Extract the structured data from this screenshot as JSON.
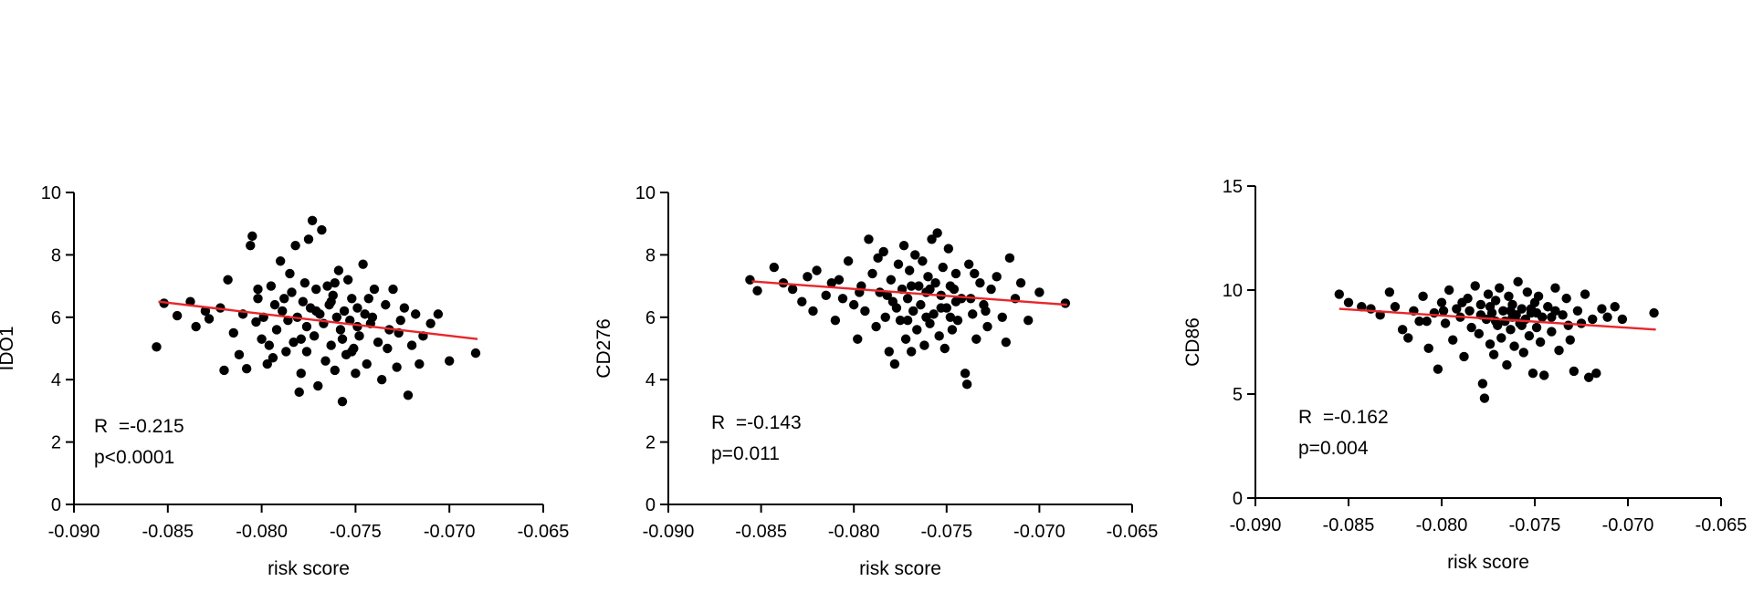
{
  "chart_data": [
    {
      "type": "scatter",
      "xlabel": "risk score",
      "ylabel": "IDO1",
      "xlim": [
        -0.09,
        -0.065
      ],
      "ylim": [
        0,
        10
      ],
      "xticks": [
        -0.09,
        -0.085,
        -0.08,
        -0.075,
        -0.07,
        -0.065
      ],
      "xtick_labels": [
        "-0.090",
        "-0.085",
        "-0.080",
        "-0.075",
        "-0.070",
        "-0.065"
      ],
      "yticks": [
        0,
        2,
        4,
        6,
        8,
        10
      ],
      "ytick_labels": [
        "0",
        "2",
        "4",
        "6",
        "8",
        "10"
      ],
      "r_text": "R  =-0.215",
      "p_text": "p<0.0001",
      "fit_line": {
        "x": [
          -0.0855,
          -0.0685
        ],
        "y": [
          6.5,
          5.3
        ]
      },
      "colors": {
        "points": "#000000",
        "fit_line": "#e8262a"
      },
      "points": [
        [
          -0.0856,
          5.05
        ],
        [
          -0.0852,
          6.45
        ],
        [
          -0.0845,
          6.05
        ],
        [
          -0.0838,
          6.5
        ],
        [
          -0.0835,
          5.7
        ],
        [
          -0.083,
          6.2
        ],
        [
          -0.0828,
          5.95
        ],
        [
          -0.0822,
          6.3
        ],
        [
          -0.082,
          4.3
        ],
        [
          -0.0818,
          7.2
        ],
        [
          -0.0815,
          5.5
        ],
        [
          -0.0812,
          4.8
        ],
        [
          -0.081,
          6.1
        ],
        [
          -0.0808,
          4.35
        ],
        [
          -0.0805,
          8.6
        ],
        [
          -0.0806,
          8.3
        ],
        [
          -0.0803,
          5.85
        ],
        [
          -0.0802,
          6.6
        ],
        [
          -0.08,
          5.3
        ],
        [
          -0.0799,
          6.0
        ],
        [
          -0.0797,
          4.5
        ],
        [
          -0.0795,
          7.0
        ],
        [
          -0.0793,
          6.4
        ],
        [
          -0.0792,
          5.6
        ],
        [
          -0.079,
          7.8
        ],
        [
          -0.0789,
          6.2
        ],
        [
          -0.0787,
          4.9
        ],
        [
          -0.0786,
          5.9
        ],
        [
          -0.0785,
          7.4
        ],
        [
          -0.0784,
          6.8
        ],
        [
          -0.0783,
          5.2
        ],
        [
          -0.0782,
          8.3
        ],
        [
          -0.0781,
          6.0
        ],
        [
          -0.078,
          3.6
        ],
        [
          -0.0779,
          4.2
        ],
        [
          -0.0778,
          6.5
        ],
        [
          -0.0777,
          7.1
        ],
        [
          -0.0776,
          5.7
        ],
        [
          -0.0775,
          8.5
        ],
        [
          -0.0774,
          6.3
        ],
        [
          -0.0773,
          9.1
        ],
        [
          -0.0772,
          5.4
        ],
        [
          -0.0771,
          6.9
        ],
        [
          -0.077,
          3.8
        ],
        [
          -0.0769,
          6.1
        ],
        [
          -0.0768,
          8.8
        ],
        [
          -0.0767,
          5.8
        ],
        [
          -0.0766,
          4.6
        ],
        [
          -0.0765,
          7.0
        ],
        [
          -0.0764,
          6.4
        ],
        [
          -0.0763,
          5.1
        ],
        [
          -0.0762,
          6.7
        ],
        [
          -0.0761,
          4.3
        ],
        [
          -0.076,
          6.0
        ],
        [
          -0.0759,
          7.5
        ],
        [
          -0.0758,
          5.6
        ],
        [
          -0.0757,
          3.3
        ],
        [
          -0.0756,
          6.2
        ],
        [
          -0.0755,
          4.8
        ],
        [
          -0.0754,
          7.2
        ],
        [
          -0.0753,
          5.9
        ],
        [
          -0.0752,
          6.6
        ],
        [
          -0.0751,
          5.0
        ],
        [
          -0.075,
          4.2
        ],
        [
          -0.0749,
          6.3
        ],
        [
          -0.0748,
          5.4
        ],
        [
          -0.0746,
          7.7
        ],
        [
          -0.0745,
          6.1
        ],
        [
          -0.0744,
          4.5
        ],
        [
          -0.0742,
          5.8
        ],
        [
          -0.074,
          6.9
        ],
        [
          -0.0738,
          5.2
        ],
        [
          -0.0736,
          4.0
        ],
        [
          -0.0734,
          6.4
        ],
        [
          -0.0732,
          5.6
        ],
        [
          -0.073,
          6.9
        ],
        [
          -0.0728,
          4.4
        ],
        [
          -0.0726,
          5.9
        ],
        [
          -0.0724,
          6.3
        ],
        [
          -0.0722,
          3.5
        ],
        [
          -0.072,
          5.1
        ],
        [
          -0.0718,
          6.1
        ],
        [
          -0.0716,
          4.5
        ],
        [
          -0.0714,
          5.4
        ],
        [
          -0.071,
          5.8
        ],
        [
          -0.0706,
          6.1
        ],
        [
          -0.07,
          4.6
        ],
        [
          -0.0686,
          4.85
        ],
        [
          -0.0802,
          6.9
        ],
        [
          -0.0796,
          5.1
        ],
        [
          -0.0788,
          6.6
        ],
        [
          -0.0779,
          5.3
        ],
        [
          -0.0771,
          6.2
        ],
        [
          -0.0763,
          6.5
        ],
        [
          -0.0757,
          5.3
        ],
        [
          -0.0749,
          5.7
        ],
        [
          -0.0741,
          6.0
        ],
        [
          -0.0733,
          5.0
        ],
        [
          -0.0727,
          5.5
        ],
        [
          -0.0794,
          4.7
        ],
        [
          -0.0776,
          4.9
        ],
        [
          -0.0761,
          7.1
        ],
        [
          -0.0752,
          4.9
        ],
        [
          -0.0743,
          6.6
        ]
      ]
    },
    {
      "type": "scatter",
      "xlabel": "risk score",
      "ylabel": "CD276",
      "xlim": [
        -0.09,
        -0.065
      ],
      "ylim": [
        0,
        10
      ],
      "xticks": [
        -0.09,
        -0.085,
        -0.08,
        -0.075,
        -0.07,
        -0.065
      ],
      "xtick_labels": [
        "-0.090",
        "-0.085",
        "-0.080",
        "-0.075",
        "-0.070",
        "-0.065"
      ],
      "yticks": [
        0,
        2,
        4,
        6,
        8,
        10
      ],
      "ytick_labels": [
        "0",
        "2",
        "4",
        "6",
        "8",
        "10"
      ],
      "r_text": "R  =-0.143",
      "p_text": "p=0.011",
      "fit_line": {
        "x": [
          -0.0855,
          -0.0685
        ],
        "y": [
          7.15,
          6.4
        ]
      },
      "colors": {
        "points": "#000000",
        "fit_line": "#e8262a"
      },
      "points": [
        [
          -0.0856,
          7.2
        ],
        [
          -0.0852,
          6.85
        ],
        [
          -0.0843,
          7.6
        ],
        [
          -0.0838,
          7.1
        ],
        [
          -0.0833,
          6.9
        ],
        [
          -0.0828,
          6.5
        ],
        [
          -0.0825,
          7.3
        ],
        [
          -0.0822,
          6.2
        ],
        [
          -0.082,
          7.5
        ],
        [
          -0.0815,
          6.7
        ],
        [
          -0.0812,
          7.1
        ],
        [
          -0.081,
          5.9
        ],
        [
          -0.0806,
          6.6
        ],
        [
          -0.0803,
          7.8
        ],
        [
          -0.08,
          6.4
        ],
        [
          -0.0798,
          5.3
        ],
        [
          -0.0796,
          7.0
        ],
        [
          -0.0794,
          6.2
        ],
        [
          -0.0792,
          8.5
        ],
        [
          -0.079,
          7.4
        ],
        [
          -0.0788,
          5.7
        ],
        [
          -0.0786,
          6.8
        ],
        [
          -0.0784,
          8.1
        ],
        [
          -0.0783,
          6.0
        ],
        [
          -0.0781,
          4.9
        ],
        [
          -0.078,
          7.2
        ],
        [
          -0.0779,
          6.5
        ],
        [
          -0.0778,
          4.5
        ],
        [
          -0.0776,
          7.7
        ],
        [
          -0.0775,
          5.9
        ],
        [
          -0.0774,
          6.9
        ],
        [
          -0.0773,
          8.3
        ],
        [
          -0.0772,
          5.3
        ],
        [
          -0.0771,
          6.6
        ],
        [
          -0.077,
          7.5
        ],
        [
          -0.0769,
          4.9
        ],
        [
          -0.0768,
          6.2
        ],
        [
          -0.0767,
          8.0
        ],
        [
          -0.0766,
          5.6
        ],
        [
          -0.0765,
          7.0
        ],
        [
          -0.0764,
          6.4
        ],
        [
          -0.0763,
          7.8
        ],
        [
          -0.0762,
          5.1
        ],
        [
          -0.0761,
          6.8
        ],
        [
          -0.076,
          7.3
        ],
        [
          -0.0759,
          5.8
        ],
        [
          -0.0758,
          8.5
        ],
        [
          -0.0757,
          6.1
        ],
        [
          -0.0756,
          7.1
        ],
        [
          -0.0755,
          8.7
        ],
        [
          -0.0754,
          5.4
        ],
        [
          -0.0753,
          6.7
        ],
        [
          -0.0752,
          7.6
        ],
        [
          -0.0751,
          5.0
        ],
        [
          -0.075,
          6.3
        ],
        [
          -0.0749,
          8.2
        ],
        [
          -0.0748,
          7.0
        ],
        [
          -0.0747,
          5.6
        ],
        [
          -0.0746,
          6.9
        ],
        [
          -0.0745,
          7.4
        ],
        [
          -0.0744,
          5.9
        ],
        [
          -0.0742,
          6.6
        ],
        [
          -0.074,
          4.2
        ],
        [
          -0.0739,
          3.85
        ],
        [
          -0.0738,
          7.7
        ],
        [
          -0.0736,
          6.1
        ],
        [
          -0.0734,
          5.3
        ],
        [
          -0.0732,
          7.1
        ],
        [
          -0.073,
          6.4
        ],
        [
          -0.0728,
          5.7
        ],
        [
          -0.0726,
          6.9
        ],
        [
          -0.0723,
          7.3
        ],
        [
          -0.072,
          6.0
        ],
        [
          -0.0718,
          5.2
        ],
        [
          -0.0716,
          7.9
        ],
        [
          -0.0713,
          6.6
        ],
        [
          -0.071,
          7.1
        ],
        [
          -0.0706,
          5.9
        ],
        [
          -0.07,
          6.8
        ],
        [
          -0.0686,
          6.45
        ],
        [
          -0.0808,
          7.2
        ],
        [
          -0.0797,
          6.8
        ],
        [
          -0.0787,
          7.9
        ],
        [
          -0.0777,
          6.3
        ],
        [
          -0.0769,
          7.0
        ],
        [
          -0.0761,
          6.0
        ],
        [
          -0.0753,
          6.3
        ],
        [
          -0.0745,
          6.5
        ],
        [
          -0.0737,
          6.6
        ],
        [
          -0.0729,
          6.2
        ],
        [
          -0.0782,
          6.7
        ],
        [
          -0.0771,
          5.9
        ],
        [
          -0.0759,
          6.9
        ],
        [
          -0.0748,
          6.0
        ],
        [
          -0.0735,
          7.4
        ]
      ]
    },
    {
      "type": "scatter",
      "xlabel": "risk score",
      "ylabel": "CD86",
      "xlim": [
        -0.09,
        -0.065
      ],
      "ylim": [
        0,
        15
      ],
      "xticks": [
        -0.09,
        -0.085,
        -0.08,
        -0.075,
        -0.07,
        -0.065
      ],
      "xtick_labels": [
        "-0.090",
        "-0.085",
        "-0.080",
        "-0.075",
        "-0.070",
        "-0.065"
      ],
      "yticks": [
        0,
        5,
        10,
        15
      ],
      "ytick_labels": [
        "0",
        "5",
        "10",
        "15"
      ],
      "r_text": "R  =-0.162",
      "p_text": "p=0.004",
      "fit_line": {
        "x": [
          -0.0855,
          -0.0685
        ],
        "y": [
          9.1,
          8.1
        ]
      },
      "colors": {
        "points": "#000000",
        "fit_line": "#e8262a"
      },
      "points": [
        [
          -0.0855,
          9.8
        ],
        [
          -0.085,
          9.4
        ],
        [
          -0.0843,
          9.2
        ],
        [
          -0.0838,
          9.1
        ],
        [
          -0.0833,
          8.8
        ],
        [
          -0.0828,
          9.9
        ],
        [
          -0.0825,
          9.2
        ],
        [
          -0.0821,
          8.1
        ],
        [
          -0.0818,
          7.7
        ],
        [
          -0.0815,
          9.0
        ],
        [
          -0.0812,
          8.5
        ],
        [
          -0.081,
          9.7
        ],
        [
          -0.0807,
          7.2
        ],
        [
          -0.0804,
          8.9
        ],
        [
          -0.0802,
          6.2
        ],
        [
          -0.08,
          9.4
        ],
        [
          -0.0798,
          8.4
        ],
        [
          -0.0796,
          10.0
        ],
        [
          -0.0794,
          7.6
        ],
        [
          -0.0792,
          9.1
        ],
        [
          -0.079,
          8.7
        ],
        [
          -0.0788,
          6.8
        ],
        [
          -0.0786,
          9.6
        ],
        [
          -0.0784,
          8.2
        ],
        [
          -0.0782,
          10.2
        ],
        [
          -0.078,
          7.9
        ],
        [
          -0.0779,
          9.3
        ],
        [
          -0.0778,
          5.5
        ],
        [
          -0.0777,
          4.8
        ],
        [
          -0.0776,
          8.6
        ],
        [
          -0.0775,
          9.8
        ],
        [
          -0.0774,
          7.4
        ],
        [
          -0.0773,
          8.9
        ],
        [
          -0.0772,
          6.9
        ],
        [
          -0.0771,
          9.5
        ],
        [
          -0.077,
          8.3
        ],
        [
          -0.0769,
          10.1
        ],
        [
          -0.0768,
          7.7
        ],
        [
          -0.0767,
          9.0
        ],
        [
          -0.0766,
          8.5
        ],
        [
          -0.0765,
          6.4
        ],
        [
          -0.0764,
          9.7
        ],
        [
          -0.0763,
          8.1
        ],
        [
          -0.0762,
          9.3
        ],
        [
          -0.0761,
          7.3
        ],
        [
          -0.076,
          8.8
        ],
        [
          -0.0759,
          10.4
        ],
        [
          -0.0758,
          8.4
        ],
        [
          -0.0757,
          9.1
        ],
        [
          -0.0756,
          7.0
        ],
        [
          -0.0755,
          8.6
        ],
        [
          -0.0754,
          9.9
        ],
        [
          -0.0753,
          7.8
        ],
        [
          -0.0752,
          8.9
        ],
        [
          -0.0751,
          6.0
        ],
        [
          -0.075,
          9.4
        ],
        [
          -0.0749,
          8.2
        ],
        [
          -0.0748,
          9.7
        ],
        [
          -0.0747,
          7.5
        ],
        [
          -0.0746,
          8.7
        ],
        [
          -0.0745,
          5.9
        ],
        [
          -0.0743,
          9.2
        ],
        [
          -0.0741,
          8.0
        ],
        [
          -0.0739,
          10.1
        ],
        [
          -0.0737,
          7.1
        ],
        [
          -0.0735,
          8.8
        ],
        [
          -0.0733,
          9.6
        ],
        [
          -0.0731,
          7.6
        ],
        [
          -0.0729,
          6.1
        ],
        [
          -0.0727,
          9.0
        ],
        [
          -0.0725,
          8.4
        ],
        [
          -0.0723,
          9.8
        ],
        [
          -0.0721,
          5.8
        ],
        [
          -0.0719,
          8.6
        ],
        [
          -0.0717,
          6.0
        ],
        [
          -0.0714,
          9.1
        ],
        [
          -0.0711,
          8.7
        ],
        [
          -0.0707,
          9.2
        ],
        [
          -0.0703,
          8.6
        ],
        [
          -0.0686,
          8.9
        ],
        [
          -0.0808,
          8.5
        ],
        [
          -0.0799,
          9.0
        ],
        [
          -0.0789,
          9.4
        ],
        [
          -0.0779,
          8.8
        ],
        [
          -0.0771,
          8.5
        ],
        [
          -0.0763,
          9.0
        ],
        [
          -0.0757,
          8.3
        ],
        [
          -0.0749,
          8.9
        ],
        [
          -0.0741,
          8.7
        ],
        [
          -0.0732,
          8.3
        ],
        [
          -0.0785,
          9.0
        ],
        [
          -0.0774,
          9.2
        ],
        [
          -0.0762,
          8.7
        ],
        [
          -0.0752,
          9.1
        ],
        [
          -0.0739,
          9.0
        ]
      ]
    }
  ]
}
